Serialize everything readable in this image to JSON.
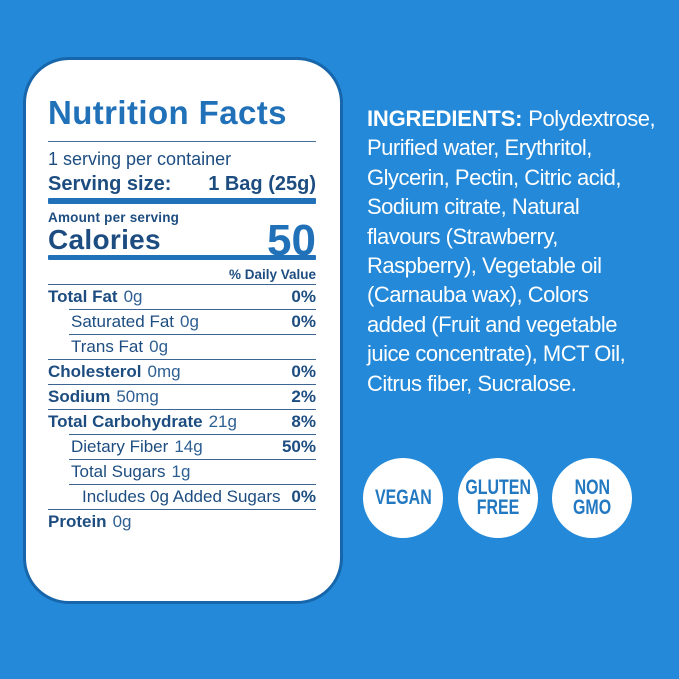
{
  "colors": {
    "background": "#2389d8",
    "panel_background": "#ffffff",
    "panel_border": "#1766ab",
    "accent_blue": "#2171b9",
    "navy_text": "#1d4d80",
    "badge_text": "#2279c2"
  },
  "nutrition_panel": {
    "title": "Nutrition Facts",
    "servings_per_container": "1 serving per container",
    "serving_size_label": "Serving size:",
    "serving_size_value": "1 Bag (25g)",
    "amount_per_serving_label": "Amount per serving",
    "calories_label": "Calories",
    "calories_value": "50",
    "daily_value_header": "% Daily Value",
    "rows": [
      {
        "label": "Total Fat",
        "amount": "0g",
        "daily_value": "0%"
      },
      {
        "label": "Saturated Fat",
        "amount": "0g",
        "daily_value": "0%"
      },
      {
        "label": "Trans Fat",
        "amount": "0g",
        "daily_value": ""
      },
      {
        "label": "Cholesterol",
        "amount": "0mg",
        "daily_value": "0%"
      },
      {
        "label": "Sodium",
        "amount": "50mg",
        "daily_value": "2%"
      },
      {
        "label": "Total Carbohydrate",
        "amount": "21g",
        "daily_value": "8%"
      },
      {
        "label": "Dietary Fiber",
        "amount": "14g",
        "daily_value": "50%"
      },
      {
        "label": "Total Sugars",
        "amount": "1g",
        "daily_value": ""
      },
      {
        "label": "Includes 0g Added Sugars",
        "amount": "",
        "daily_value": "0%"
      },
      {
        "label": "Protein",
        "amount": "0g",
        "daily_value": ""
      }
    ]
  },
  "ingredients": {
    "label": "INGREDIENTS:",
    "full_text": "Polydextrose, Purified water, Erythritol, Glycerin, Pectin, Citric acid, Sodium citrate, Natural flavours (Strawberry, Raspberry), Vegetable oil (Carnauba wax), Colors added (Fruit and vegetable juice concentrate), MCT Oil, Citrus fiber, Sucralose.",
    "lines": [
      "Polydextrose,",
      "Purified water, Erythritol,",
      "Glycerin, Pectin, Citric acid,",
      "Sodium citrate, Natural",
      "flavours (Strawberry,",
      "Raspberry), Vegetable oil",
      "(Carnauba wax), Colors",
      "added (Fruit and vegetable",
      "juice concentrate), MCT Oil,",
      "Citrus fiber, Sucralose."
    ]
  },
  "badges": [
    {
      "name": "vegan",
      "lines": [
        "VEGAN"
      ]
    },
    {
      "name": "gluten-free",
      "lines": [
        "GLUTEN",
        "FREE"
      ]
    },
    {
      "name": "non-gmo",
      "lines": [
        "NON",
        "GMO"
      ]
    }
  ]
}
